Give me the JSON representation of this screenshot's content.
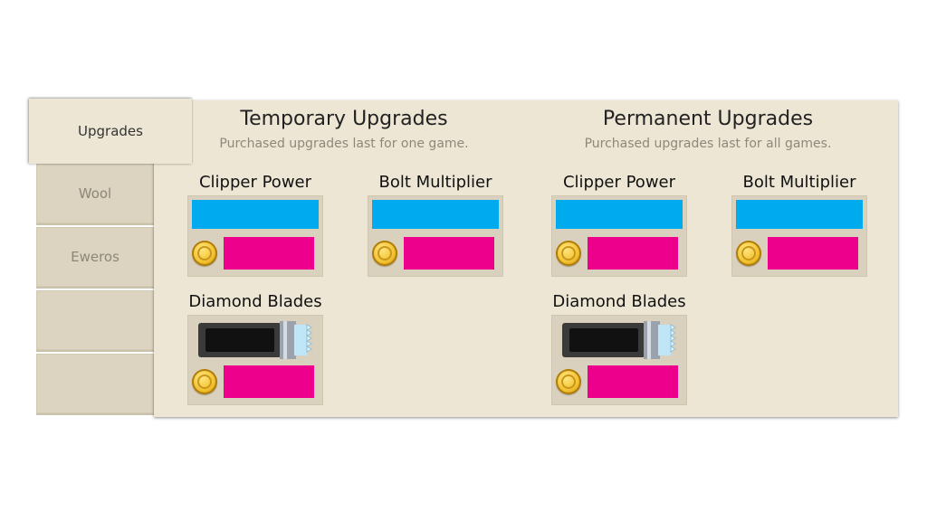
{
  "tabs": [
    "Upgrades",
    "Wool",
    "Eweros",
    "",
    ""
  ],
  "temporary": {
    "title": "Temporary Upgrades",
    "subtitle": "Purchased upgrades last for one game.",
    "items": [
      "Clipper Power",
      "Bolt Multiplier",
      "Diamond Blades"
    ]
  },
  "permanent": {
    "title": "Permanent Upgrades",
    "subtitle": "Purchased upgrades last for all games.",
    "items": [
      "Clipper Power",
      "Bolt Multiplier",
      "Diamond Blades"
    ]
  },
  "colors": {
    "panel": "#ede6d4",
    "progress_bar": "#00aaee",
    "price_button": "#ec008c",
    "coin": "#f2c230"
  },
  "icons": {
    "currency": "gold-coin-icon",
    "diamond_blades": "clipper-blade-icon"
  }
}
